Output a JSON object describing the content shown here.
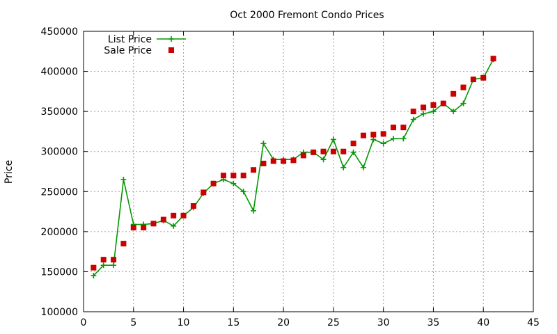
{
  "chart_data": {
    "type": "line",
    "title": "Oct 2000 Fremont Condo Prices",
    "xlabel": "",
    "ylabel": "Price",
    "xlim": [
      0,
      45
    ],
    "ylim": [
      100000,
      450000
    ],
    "xticks": [
      0,
      5,
      10,
      15,
      20,
      25,
      30,
      35,
      40,
      45
    ],
    "yticks": [
      100000,
      150000,
      200000,
      250000,
      300000,
      350000,
      400000,
      450000
    ],
    "grid": true,
    "legend_position": "top-left",
    "series": [
      {
        "name": "List Price",
        "style": "line-with-plus",
        "color": "#009900",
        "x": [
          1,
          2,
          3,
          4,
          5,
          6,
          7,
          8,
          9,
          10,
          11,
          12,
          13,
          14,
          15,
          16,
          17,
          18,
          19,
          20,
          21,
          22,
          23,
          24,
          25,
          26,
          27,
          28,
          29,
          30,
          31,
          32,
          33,
          34,
          35,
          36,
          37,
          38,
          39,
          40,
          41
        ],
        "values": [
          145000,
          158000,
          158000,
          265000,
          209000,
          209000,
          210000,
          214000,
          207000,
          220000,
          230000,
          248000,
          260000,
          265000,
          260000,
          250000,
          226000,
          310000,
          290000,
          290000,
          290000,
          299000,
          299000,
          290000,
          315000,
          280000,
          299000,
          280000,
          315000,
          310000,
          316000,
          316000,
          340000,
          347000,
          350000,
          360000,
          350000,
          360000,
          390000,
          392000,
          415000
        ]
      },
      {
        "name": "Sale Price",
        "style": "square-points",
        "color": "#cc0000",
        "x": [
          1,
          2,
          3,
          4,
          5,
          6,
          7,
          8,
          9,
          10,
          11,
          12,
          13,
          14,
          15,
          16,
          17,
          18,
          19,
          20,
          21,
          22,
          23,
          24,
          25,
          26,
          27,
          28,
          29,
          30,
          31,
          32,
          33,
          34,
          35,
          36,
          37,
          38,
          39,
          40,
          41
        ],
        "values": [
          155000,
          165000,
          165000,
          185000,
          205000,
          205000,
          210000,
          215000,
          220000,
          220000,
          232000,
          249000,
          260000,
          270000,
          270000,
          270000,
          277000,
          285000,
          288000,
          288000,
          289000,
          295000,
          299000,
          300000,
          300000,
          300000,
          310000,
          320000,
          321000,
          322000,
          330000,
          330000,
          350000,
          355000,
          358000,
          360000,
          372000,
          380000,
          390000,
          392000,
          416000
        ]
      }
    ]
  }
}
